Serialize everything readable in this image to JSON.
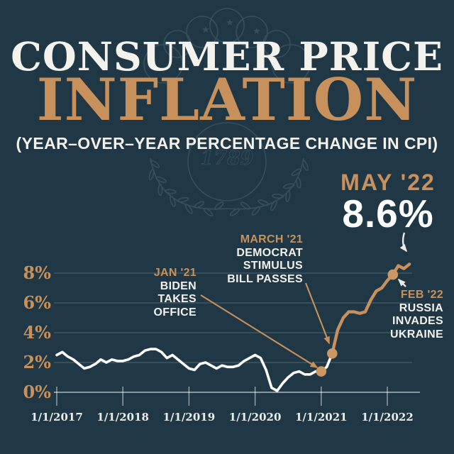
{
  "poster": {
    "title_line1": "CONSUMER PRICE",
    "title_line2": "INFLATION",
    "subtitle": "(YEAR–OVER–YEAR PERCENTAGE CHANGE IN CPI)"
  },
  "watermark": {
    "text": "1789"
  },
  "colors": {
    "background": "#203845",
    "gold": "#c8915c",
    "white_text": "#f3f1ea",
    "line_white": "#ffffff",
    "line_gold": "#c8915c",
    "gridline": "rgba(255,255,255,0.22)"
  },
  "annotations": {
    "may22": {
      "label": "MAY '22",
      "value": "8.6%"
    },
    "march21": {
      "label": "MARCH '21",
      "lines": [
        "DEMOCRAT",
        "STIMULUS",
        "BILL PASSES"
      ]
    },
    "jan21": {
      "label": "JAN '21",
      "lines": [
        "BIDEN",
        "TAKES",
        "OFFICE"
      ]
    },
    "feb22": {
      "label": "FEB '22",
      "lines": [
        "RUSSIA",
        "INVADES",
        "UKRAINE"
      ]
    }
  },
  "chart_data": {
    "type": "line",
    "title": "Consumer Price Inflation (Year-over-Year Percentage Change in CPI)",
    "x_tick_labels": [
      "1/1/2017",
      "1/1/2018",
      "1/1/2019",
      "1/1/2020",
      "1/1/2021",
      "1/1/2022"
    ],
    "y_ticks": [
      {
        "value": 8,
        "label": "8%"
      },
      {
        "value": 6,
        "label": "6%"
      },
      {
        "value": 4,
        "label": "4%"
      },
      {
        "value": 2,
        "label": "2%"
      },
      {
        "value": 0,
        "label": "0%"
      }
    ],
    "ylim": [
      0,
      9
    ],
    "grid": true,
    "start_month": "1/2017",
    "end_month": "5/2022",
    "values_pct_by_month": [
      2.5,
      2.7,
      2.4,
      2.2,
      1.9,
      1.6,
      1.7,
      1.9,
      2.2,
      2.0,
      2.2,
      2.1,
      2.1,
      2.2,
      2.4,
      2.5,
      2.8,
      2.9,
      2.9,
      2.7,
      2.3,
      2.5,
      2.2,
      1.9,
      1.6,
      1.5,
      1.9,
      2.0,
      1.8,
      1.6,
      1.8,
      1.7,
      1.7,
      1.8,
      2.1,
      2.3,
      2.5,
      2.3,
      1.5,
      0.3,
      0.1,
      0.6,
      1.0,
      1.3,
      1.4,
      1.2,
      1.2,
      1.4,
      1.4,
      1.7,
      2.6,
      4.2,
      5.0,
      5.4,
      5.4,
      5.3,
      5.4,
      6.2,
      6.8,
      7.0,
      7.5,
      7.9,
      8.5,
      8.3,
      8.6
    ],
    "highlight_start_index": 50,
    "series_colors": {
      "before_highlight": "white",
      "after_highlight": "gold"
    },
    "markers": [
      {
        "month_index": 48,
        "date": "1/2021",
        "value_pct": 1.4,
        "dot": true,
        "annotation": "jan21"
      },
      {
        "month_index": 50,
        "date": "3/2021",
        "value_pct": 2.6,
        "dot": true,
        "annotation": "march21"
      },
      {
        "month_index": 61,
        "date": "2/2022",
        "value_pct": 7.9,
        "dot": true,
        "annotation": "feb22"
      },
      {
        "month_index": 64,
        "date": "5/2022",
        "value_pct": 8.6,
        "dot": false,
        "annotation": "may22"
      }
    ]
  }
}
